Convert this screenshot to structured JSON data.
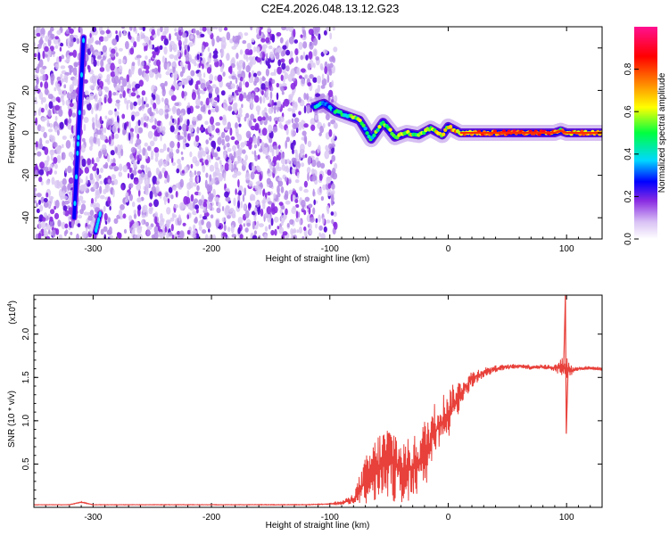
{
  "figure_title": "C2E4.2026.048.13.12.G23",
  "chart_data": [
    {
      "type": "heatmap",
      "panel": "spectrogram",
      "xlabel": "Height of straight line (km)",
      "ylabel": "Frequency (Hz)",
      "xlim": [
        -350,
        130
      ],
      "ylim": [
        -50,
        50
      ],
      "x_ticks": [
        -300,
        -200,
        -100,
        0,
        100
      ],
      "y_ticks": [
        -40,
        -20,
        0,
        20,
        40
      ],
      "noise_region_x": [
        -350,
        -95
      ],
      "colorbar": {
        "label": "Normalized spectral amplitude",
        "range": [
          0.0,
          1.0
        ],
        "ticks": [
          0.0,
          0.2,
          0.4,
          0.6,
          0.8
        ],
        "colors": [
          "#ffffff",
          "#c9a8f0",
          "#8a2be2",
          "#0000ff",
          "#00d8ff",
          "#00ff40",
          "#ffff00",
          "#ff8000",
          "#ff0000",
          "#ff1090"
        ]
      },
      "tone_track": {
        "x": [
          -115,
          -105,
          -95,
          -85,
          -75,
          -65,
          -55,
          -45,
          -35,
          -25,
          -15,
          -5,
          0,
          10,
          30,
          50,
          70,
          90,
          95,
          100,
          130
        ],
        "y": [
          12,
          14,
          10,
          8,
          6,
          -3,
          5,
          -2,
          0,
          -1,
          2,
          -1,
          3,
          0,
          0,
          0,
          0,
          0,
          1,
          0,
          0
        ],
        "amp": [
          0.35,
          0.3,
          0.4,
          0.45,
          0.5,
          0.45,
          0.55,
          0.5,
          0.6,
          0.55,
          0.6,
          0.65,
          0.6,
          0.7,
          0.75,
          0.8,
          0.8,
          0.75,
          0.6,
          0.7,
          0.7
        ]
      },
      "streak": {
        "x": [
          -316,
          -308
        ],
        "y": [
          -40,
          45
        ]
      },
      "streak2": {
        "x": [
          -298,
          -294
        ],
        "y": [
          -47,
          -38
        ]
      }
    },
    {
      "type": "line",
      "panel": "snr",
      "xlabel": "Height of straight line (km)",
      "ylabel": "SNR (10 * v/v)",
      "scale_label": "(x10",
      "scale_exponent": "4",
      "scale_suffix": ")",
      "xlim": [
        -350,
        130
      ],
      "ylim": [
        0.0,
        2.45
      ],
      "x_ticks": [
        -300,
        -200,
        -100,
        0,
        100
      ],
      "y_ticks": [
        0.5,
        1.0,
        1.5,
        2.0
      ],
      "y_tick_labels": [
        "0.5",
        "1.0",
        "1.5",
        "2.0"
      ],
      "series_color": "#e8403a",
      "series": [
        {
          "name": "SNR",
          "x": [
            -350,
            -320,
            -310,
            -300,
            -200,
            -120,
            -100,
            -90,
            -80,
            -70,
            -60,
            -50,
            -45,
            -40,
            -30,
            -20,
            -10,
            0,
            10,
            20,
            30,
            40,
            50,
            60,
            70,
            80,
            90,
            95,
            100,
            105,
            110,
            120,
            130
          ],
          "y": [
            0.03,
            0.03,
            0.06,
            0.03,
            0.03,
            0.03,
            0.04,
            0.05,
            0.1,
            0.3,
            0.45,
            0.55,
            0.5,
            0.4,
            0.45,
            0.6,
            0.9,
            1.08,
            1.3,
            1.48,
            1.56,
            1.6,
            1.62,
            1.63,
            1.62,
            1.62,
            1.61,
            1.62,
            1.6,
            1.58,
            1.6,
            1.61,
            1.6
          ],
          "noise": [
            0.003,
            0.003,
            0.006,
            0.003,
            0.003,
            0.004,
            0.006,
            0.02,
            0.06,
            0.28,
            0.4,
            0.42,
            0.45,
            0.38,
            0.35,
            0.42,
            0.35,
            0.3,
            0.18,
            0.1,
            0.06,
            0.04,
            0.03,
            0.03,
            0.03,
            0.03,
            0.04,
            0.1,
            0.15,
            0.05,
            0.02,
            0.02,
            0.02
          ]
        }
      ],
      "spike": {
        "x": 99,
        "ymax": 2.45,
        "ymin": 0.85
      }
    }
  ]
}
